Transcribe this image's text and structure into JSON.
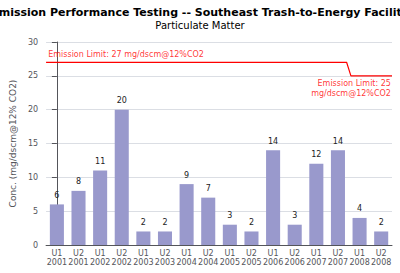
{
  "chart_data": {
    "type": "bar",
    "title": "Emission Performance Testing -- Southeast Trash-to-Energy Facility",
    "subtitle": "Particulate Matter",
    "categories": [
      "U1\n2001",
      "U2\n2001",
      "U1\n2002",
      "U2\n2002",
      "U1\n2003",
      "U2\n2003",
      "U1\n2004",
      "U2\n2004",
      "U1\n2005",
      "U2\n2005",
      "U1\n2006",
      "U2\n2006",
      "U1\n2007",
      "U2\n2007",
      "U1\n2008",
      "U2\n2008"
    ],
    "values": [
      6,
      8,
      11,
      20,
      2,
      2,
      9,
      7,
      3,
      2,
      14,
      3,
      12,
      14,
      4,
      2
    ],
    "color": "#9999cc",
    "ylabel": "Conc. (mg/dscm@12% CO2)",
    "ylim": [
      0,
      30
    ],
    "yticks": [
      0,
      5,
      10,
      15,
      20,
      25,
      30
    ],
    "grid": true,
    "data_labels": true,
    "limits": [
      {
        "value": 27,
        "label": "Emission Limit: 27 mg/dscm@12%CO2",
        "start": "U1\n2001",
        "end": "U2\n2007",
        "color": "red"
      },
      {
        "value": 25,
        "label": "Emission Limit: 25\nmg/dscm@12%CO2",
        "start": "U1\n2008",
        "end": "U2\n2008",
        "color": "red"
      }
    ]
  }
}
